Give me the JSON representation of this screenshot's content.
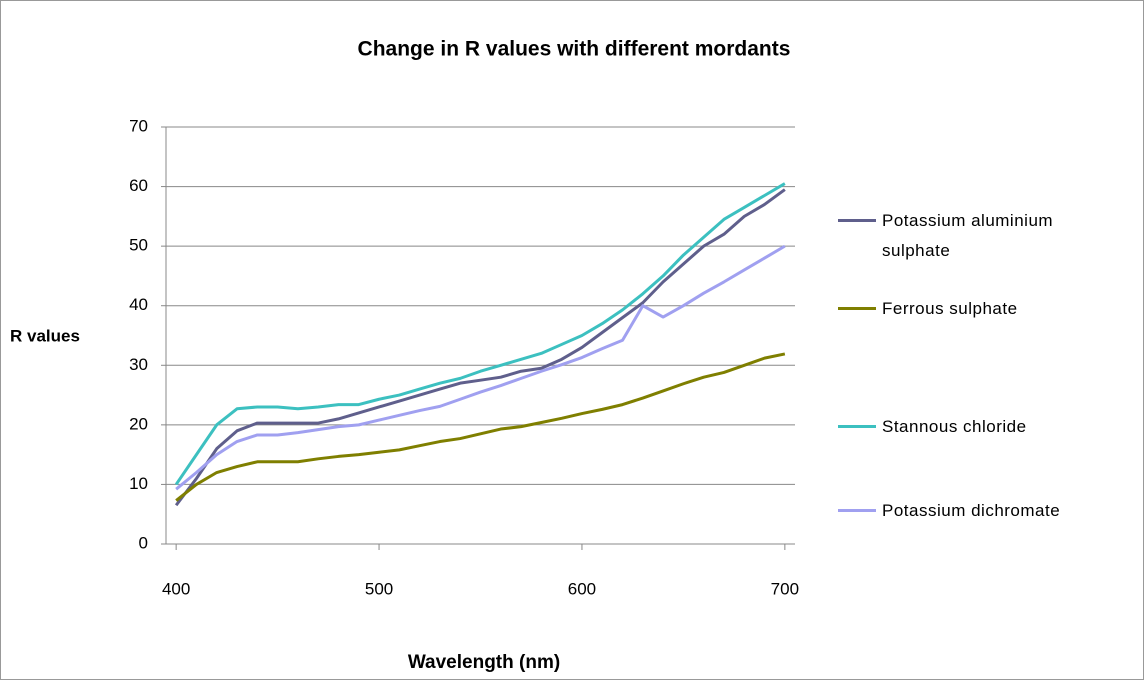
{
  "chart_data": {
    "type": "line",
    "title": "Change in R values with different mordants",
    "x_label": "Wavelength (nm)",
    "y_label": "R values",
    "x": [
      400,
      410,
      420,
      430,
      440,
      450,
      460,
      470,
      480,
      490,
      500,
      510,
      520,
      530,
      540,
      550,
      560,
      570,
      580,
      590,
      600,
      610,
      620,
      630,
      640,
      650,
      660,
      670,
      680,
      690,
      700
    ],
    "series": [
      {
        "name": "Potassium aluminium sulphate",
        "color": "#5f5f8c",
        "values": [
          6.5,
          11,
          16,
          19,
          20.3,
          20.3,
          20.3,
          20.3,
          21,
          22,
          23,
          24,
          25,
          26,
          27,
          27.5,
          28,
          29,
          29.5,
          31,
          33,
          35.5,
          38,
          40.5,
          44,
          47,
          50,
          52,
          55,
          57,
          59.5
        ]
      },
      {
        "name": "Ferrous sulphate",
        "color": "#7f7f00",
        "values": [
          7.3,
          10,
          12,
          13,
          13.8,
          13.8,
          13.8,
          14.3,
          14.7,
          15,
          15.4,
          15.8,
          16.5,
          17.2,
          17.7,
          18.5,
          19.3,
          19.7,
          20.4,
          21.1,
          21.9,
          22.6,
          23.4,
          24.5,
          25.7,
          26.9,
          28,
          28.8,
          30,
          31.2,
          31.9
        ]
      },
      {
        "name": "Stannous chloride",
        "color": "#3cc0c0",
        "values": [
          10,
          15,
          20,
          22.7,
          23,
          23,
          22.7,
          23,
          23.4,
          23.4,
          24.3,
          25,
          26,
          27,
          27.8,
          29,
          30,
          31,
          32,
          33.5,
          35,
          37,
          39.3,
          42,
          45,
          48.5,
          51.5,
          54.5,
          56.5,
          58.5,
          60.5
        ]
      },
      {
        "name": "Potassium dichromate",
        "color": "#a0a0f0",
        "values": [
          9.2,
          12,
          15,
          17.2,
          18.3,
          18.3,
          18.7,
          19.2,
          19.7,
          20,
          20.8,
          21.6,
          22.4,
          23.1,
          24.3,
          25.5,
          26.6,
          27.8,
          29,
          30.1,
          31.3,
          32.8,
          34.2,
          40,
          38.1,
          40,
          42.1,
          44,
          46,
          48,
          50
        ]
      }
    ],
    "xlim": [
      395,
      705
    ],
    "xticks": [
      400,
      500,
      600,
      700
    ],
    "ylim": [
      0,
      70
    ],
    "yticks": [
      0,
      10,
      20,
      30,
      40,
      50,
      60,
      70
    ],
    "grid": true,
    "legend": "right"
  }
}
